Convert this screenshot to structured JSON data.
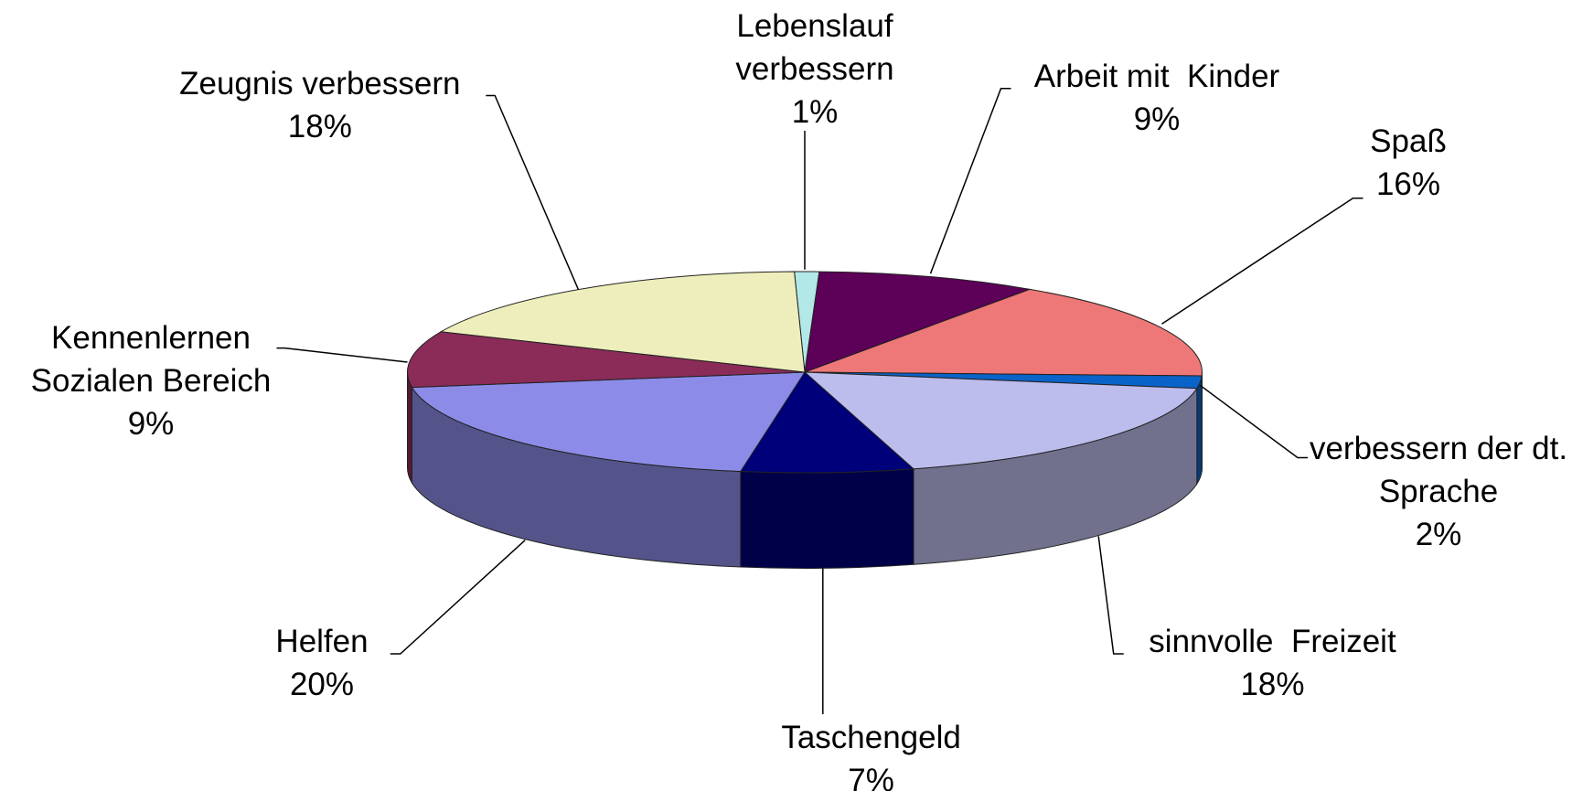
{
  "chart_data": {
    "type": "pie",
    "categories": [
      "Lebenslauf verbessern",
      "Arbeit mit  Kinder",
      "Spaß",
      "verbessern der dt. Sprache",
      "sinnvolle  Freizeit",
      "Taschengeld",
      "Helfen",
      "Kennenlernen Sozialen Bereich",
      "Zeugnis verbessern"
    ],
    "values": [
      1,
      9,
      16,
      2,
      18,
      7,
      20,
      9,
      18
    ],
    "value_labels": [
      "1%",
      "9%",
      "16%",
      "2%",
      "18%",
      "7%",
      "20%",
      "9%",
      "18%"
    ],
    "colors": [
      "#b3e8e8",
      "#5c0058",
      "#ee7777",
      "#0a63c8",
      "#bcbced",
      "#00007a",
      "#8c8ce8",
      "#8a2b58",
      "#eeeebc"
    ]
  }
}
